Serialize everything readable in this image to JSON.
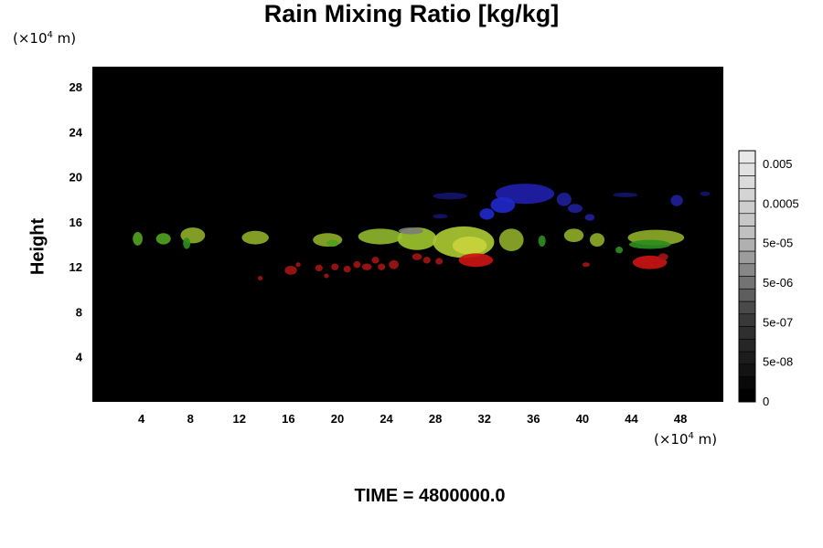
{
  "chart_data": {
    "type": "heatmap",
    "title": "Rain Mixing Ratio [kg/kg]",
    "ylabel": "Height",
    "xlabel": "",
    "x_unit": {
      "prefix": "(×10",
      "exp": "4",
      "suffix": " m)"
    },
    "y_unit": {
      "prefix": "(×10",
      "exp": "4",
      "suffix": " m)"
    },
    "xlim": [
      0,
      51.5
    ],
    "ylim": [
      0,
      29.8
    ],
    "xticks": [
      4,
      8,
      12,
      16,
      20,
      24,
      28,
      32,
      36,
      40,
      44,
      48
    ],
    "yticks": [
      4,
      8,
      12,
      16,
      20,
      24,
      28
    ],
    "background": "#000000",
    "colorbar": {
      "levels": 20,
      "tick_labels": [
        "0.005",
        "0.0005",
        "5e-05",
        "5e-06",
        "5e-07",
        "5e-08",
        "0"
      ],
      "colors": [
        "#000000",
        "#3c3c3c",
        "#bebebe",
        "#e8e8e8"
      ]
    },
    "cells": [
      {
        "color": "#50a020",
        "x": 3.7,
        "y": 14.5,
        "rx": 0.4,
        "ry": 0.6
      },
      {
        "color": "#50a020",
        "x": 5.8,
        "y": 14.5,
        "rx": 0.6,
        "ry": 0.5
      },
      {
        "color": "#8caa28",
        "x": 8.2,
        "y": 14.8,
        "rx": 1.0,
        "ry": 0.7
      },
      {
        "color": "#2d8c1e",
        "x": 7.7,
        "y": 14.1,
        "rx": 0.3,
        "ry": 0.5
      },
      {
        "color": "#8caa28",
        "x": 13.3,
        "y": 14.6,
        "rx": 1.1,
        "ry": 0.6
      },
      {
        "color": "#8caa28",
        "x": 19.2,
        "y": 14.4,
        "rx": 1.2,
        "ry": 0.6
      },
      {
        "color": "#50a020",
        "x": 19.6,
        "y": 14.1,
        "rx": 0.5,
        "ry": 0.3
      },
      {
        "color": "#8cb42d",
        "x": 23.5,
        "y": 14.7,
        "rx": 1.8,
        "ry": 0.7
      },
      {
        "color": "#9bc32d",
        "x": 26.5,
        "y": 14.5,
        "rx": 1.6,
        "ry": 1.0
      },
      {
        "color": "#aac832",
        "x": 30.3,
        "y": 14.2,
        "rx": 2.5,
        "ry": 1.4
      },
      {
        "color": "#c8d23c",
        "x": 30.8,
        "y": 13.9,
        "rx": 1.4,
        "ry": 0.8
      },
      {
        "color": "#8caa28",
        "x": 34.2,
        "y": 14.4,
        "rx": 1.0,
        "ry": 1.0
      },
      {
        "color": "#2d8c1e",
        "x": 36.7,
        "y": 14.3,
        "rx": 0.3,
        "ry": 0.5
      },
      {
        "color": "#8caa28",
        "x": 39.3,
        "y": 14.8,
        "rx": 0.8,
        "ry": 0.6
      },
      {
        "color": "#8caa28",
        "x": 41.2,
        "y": 14.4,
        "rx": 0.6,
        "ry": 0.6
      },
      {
        "color": "#8caa28",
        "x": 46.0,
        "y": 14.6,
        "rx": 2.3,
        "ry": 0.7
      },
      {
        "color": "#2d8c1e",
        "x": 45.5,
        "y": 14.0,
        "rx": 1.7,
        "ry": 0.4
      },
      {
        "color": "#2d8c1e",
        "x": 43.0,
        "y": 13.5,
        "rx": 0.3,
        "ry": 0.3
      },
      {
        "color": "#7d7d78",
        "x": 26.0,
        "y": 15.2,
        "rx": 1.0,
        "ry": 0.3
      },
      {
        "color": "#a01414",
        "x": 13.7,
        "y": 11.0,
        "rx": 0.2,
        "ry": 0.2
      },
      {
        "color": "#a01414",
        "x": 16.2,
        "y": 11.7,
        "rx": 0.5,
        "ry": 0.4
      },
      {
        "color": "#a01414",
        "x": 16.8,
        "y": 12.2,
        "rx": 0.2,
        "ry": 0.2
      },
      {
        "color": "#a01414",
        "x": 18.5,
        "y": 11.9,
        "rx": 0.3,
        "ry": 0.3
      },
      {
        "color": "#a01414",
        "x": 19.1,
        "y": 11.2,
        "rx": 0.2,
        "ry": 0.2
      },
      {
        "color": "#a01414",
        "x": 19.8,
        "y": 12.0,
        "rx": 0.3,
        "ry": 0.3
      },
      {
        "color": "#a01414",
        "x": 20.8,
        "y": 11.8,
        "rx": 0.3,
        "ry": 0.3
      },
      {
        "color": "#a01414",
        "x": 21.6,
        "y": 12.2,
        "rx": 0.3,
        "ry": 0.3
      },
      {
        "color": "#a01414",
        "x": 22.4,
        "y": 12.0,
        "rx": 0.4,
        "ry": 0.3
      },
      {
        "color": "#a01414",
        "x": 23.1,
        "y": 12.6,
        "rx": 0.3,
        "ry": 0.3
      },
      {
        "color": "#a01414",
        "x": 23.6,
        "y": 12.0,
        "rx": 0.3,
        "ry": 0.3
      },
      {
        "color": "#a01414",
        "x": 24.6,
        "y": 12.2,
        "rx": 0.4,
        "ry": 0.4
      },
      {
        "color": "#a01414",
        "x": 26.5,
        "y": 12.9,
        "rx": 0.4,
        "ry": 0.3
      },
      {
        "color": "#a01414",
        "x": 27.3,
        "y": 12.6,
        "rx": 0.3,
        "ry": 0.3
      },
      {
        "color": "#a01414",
        "x": 28.3,
        "y": 12.5,
        "rx": 0.3,
        "ry": 0.3
      },
      {
        "color": "#c81414",
        "x": 31.3,
        "y": 12.6,
        "rx": 1.4,
        "ry": 0.6
      },
      {
        "color": "#a01414",
        "x": 40.3,
        "y": 12.2,
        "rx": 0.3,
        "ry": 0.2
      },
      {
        "color": "#c81414",
        "x": 45.5,
        "y": 12.4,
        "rx": 1.4,
        "ry": 0.6
      },
      {
        "color": "#a01414",
        "x": 46.6,
        "y": 12.9,
        "rx": 0.4,
        "ry": 0.3
      },
      {
        "color": "#1e1eaa",
        "x": 35.3,
        "y": 18.5,
        "rx": 2.4,
        "ry": 0.9
      },
      {
        "color": "#1e28c8",
        "x": 33.5,
        "y": 17.5,
        "rx": 1.0,
        "ry": 0.7
      },
      {
        "color": "#1e28c8",
        "x": 32.2,
        "y": 16.7,
        "rx": 0.6,
        "ry": 0.5
      },
      {
        "color": "#1e1e96",
        "x": 38.5,
        "y": 18.0,
        "rx": 0.6,
        "ry": 0.6
      },
      {
        "color": "#1e1e96",
        "x": 39.4,
        "y": 17.2,
        "rx": 0.6,
        "ry": 0.4
      },
      {
        "color": "#1e1e96",
        "x": 40.6,
        "y": 16.4,
        "rx": 0.4,
        "ry": 0.3
      },
      {
        "color": "#1e1e96",
        "x": 47.7,
        "y": 17.9,
        "rx": 0.5,
        "ry": 0.5
      },
      {
        "color": "#14146e",
        "x": 29.2,
        "y": 18.3,
        "rx": 1.4,
        "ry": 0.3
      },
      {
        "color": "#14146e",
        "x": 43.5,
        "y": 18.4,
        "rx": 1.0,
        "ry": 0.2
      },
      {
        "color": "#14146e",
        "x": 50.0,
        "y": 18.5,
        "rx": 0.4,
        "ry": 0.2
      },
      {
        "color": "#14146e",
        "x": 28.4,
        "y": 16.5,
        "rx": 0.6,
        "ry": 0.2
      }
    ]
  },
  "footer": {
    "time_label": "TIME = 4800000.0"
  }
}
